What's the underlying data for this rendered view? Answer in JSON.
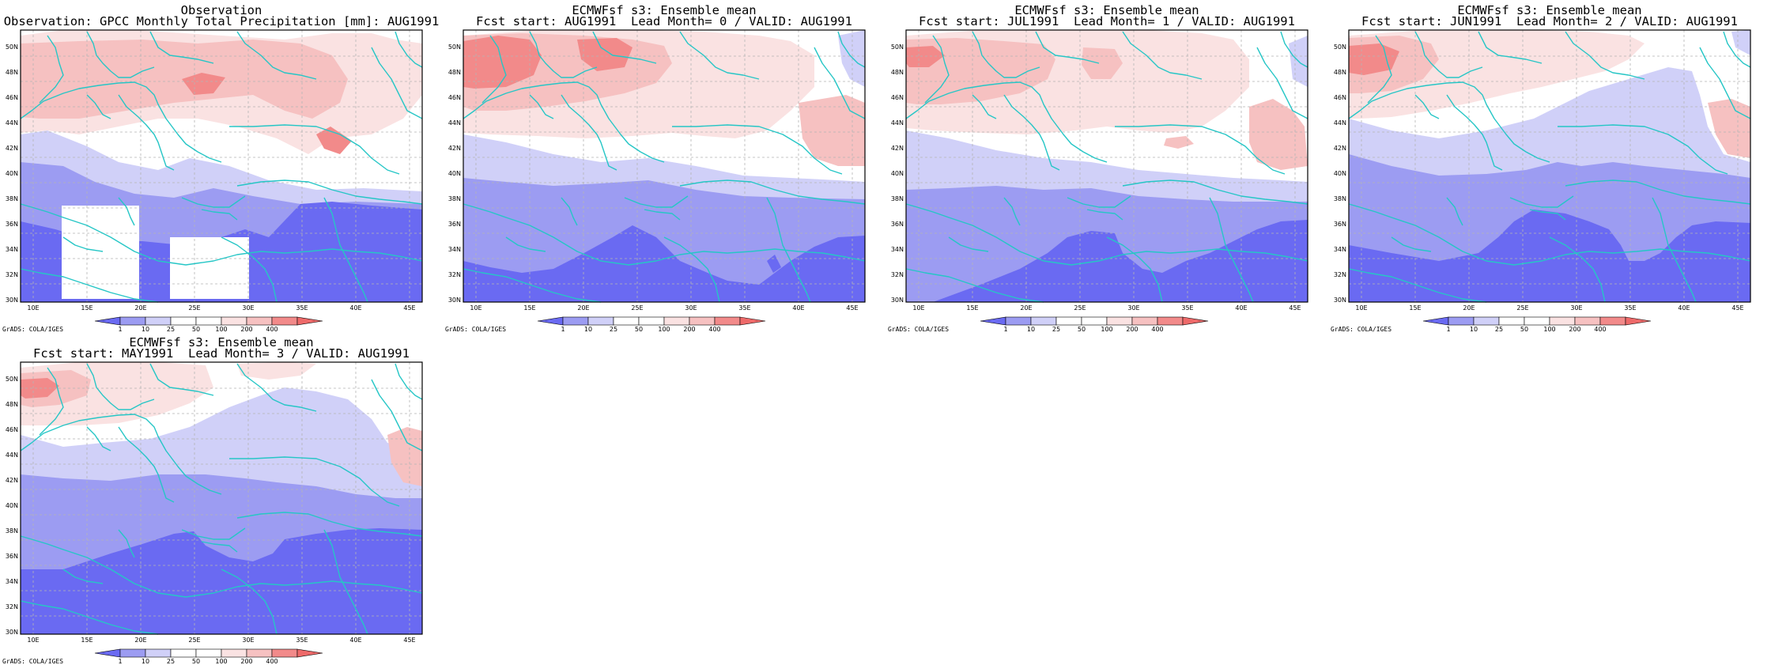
{
  "shared": {
    "colors": {
      "coastline": "#26c6c6",
      "gridline": "#b4b4b4",
      "dry3": "#6a6af2",
      "dry2": "#9c9cf2",
      "dry1": "#d0d0f8",
      "neutral": "#ffffff",
      "wet1": "#fae2e2",
      "wet2": "#f6c1c1",
      "wet3": "#f28a8a",
      "wet4": "#ee6a6a"
    },
    "lat_ticks": [
      "30N",
      "32N",
      "34N",
      "36N",
      "38N",
      "40N",
      "42N",
      "44N",
      "46N",
      "48N",
      "50N"
    ],
    "lon_ticks": [
      "10E",
      "15E",
      "20E",
      "25E",
      "30E",
      "35E",
      "40E",
      "45E"
    ],
    "colorbar_labels": [
      "1",
      "10",
      "25",
      "50",
      "100",
      "200",
      "400"
    ],
    "credit": "GrADS: COLA/IGES"
  },
  "panels": [
    {
      "title1": "Observation",
      "title2": "Observation: GPCC Monthly Total Precipitation [mm]: AUG1991"
    },
    {
      "title1": "ECMWFsf s3: Ensemble mean",
      "title2": "Fcst start: AUG1991  Lead Month= 0 / VALID: AUG1991"
    },
    {
      "title1": "ECMWFsf s3: Ensemble mean",
      "title2": "Fcst start: JUL1991  Lead Month= 1 / VALID: AUG1991"
    },
    {
      "title1": "ECMWFsf s3: Ensemble mean",
      "title2": "Fcst start: JUN1991  Lead Month= 2 / VALID: AUG1991"
    },
    {
      "title1": "ECMWFsf s3: Ensemble mean",
      "title2": "Fcst start: MAY1991  Lead Month= 3 / VALID: AUG1991"
    }
  ]
}
